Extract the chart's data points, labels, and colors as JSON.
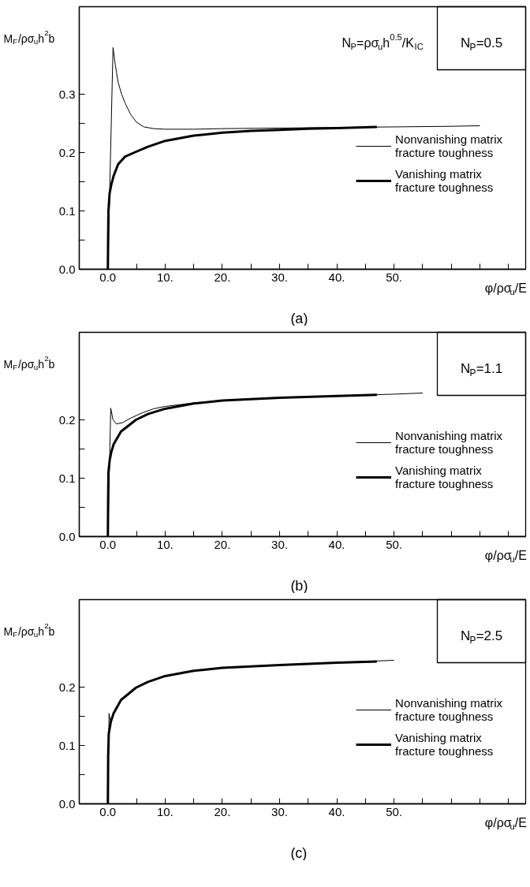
{
  "chart_data": [
    {
      "type": "line",
      "title": "(a)",
      "xlabel": "φ/ρσ$_{u}$/E",
      "ylabel": "M$_{F}$/ρσ$_{u}$h$^{2}$b",
      "legend": "right",
      "grid": false,
      "annotations": [
        "N$_{P}$=0.5",
        "N$_{P}$=ρσ$_{u}$h$^{0.5}$/K$_{IC}$"
      ],
      "xlim": [
        -5,
        73
      ],
      "ylim": [
        0,
        0.45
      ],
      "xticks": [
        {
          "value": 0,
          "label": "0.0"
        },
        {
          "value": 5,
          "label": null
        },
        {
          "value": 10,
          "label": "10."
        },
        {
          "value": 15,
          "label": null
        },
        {
          "value": 20,
          "label": "20."
        },
        {
          "value": 25,
          "label": null
        },
        {
          "value": 30,
          "label": "30."
        },
        {
          "value": 35,
          "label": null
        },
        {
          "value": 40,
          "label": "40."
        },
        {
          "value": 45,
          "label": null
        },
        {
          "value": 50,
          "label": "50."
        },
        {
          "value": 55,
          "label": null
        },
        {
          "value": 60,
          "label": null
        },
        {
          "value": 65,
          "label": null
        },
        {
          "value": 70,
          "label": null
        }
      ],
      "yticks": [
        {
          "value": 0,
          "label": "0.0"
        },
        {
          "value": 0.05,
          "label": null
        },
        0.1,
        {
          "value": 0.15,
          "label": null
        },
        0.2,
        {
          "value": 0.25,
          "label": null
        },
        0.3
      ],
      "series": [
        {
          "name": "Nonvanishing matrix fracture toughness",
          "color": "#000000",
          "x": [
            0,
            0.9,
            1.3,
            1.8,
            2.4,
            3,
            4,
            5,
            6.3,
            8,
            10,
            15,
            20,
            30,
            40,
            50,
            60,
            65
          ],
          "values": [
            0,
            0.38,
            0.35,
            0.32,
            0.3,
            0.285,
            0.265,
            0.252,
            0.244,
            0.241,
            0.24,
            0.24,
            0.241,
            0.242,
            0.243,
            0.244,
            0.245,
            0.246
          ]
        },
        {
          "name": "Vanishing matrix fracture toughness",
          "color": "#000000",
          "x": [
            0,
            0.05,
            0.1,
            0.3,
            0.6,
            1,
            1.8,
            3,
            4.6,
            7,
            10,
            15,
            20,
            25,
            30,
            35,
            40,
            47
          ],
          "values": [
            0,
            0.06,
            0.1,
            0.13,
            0.145,
            0.16,
            0.18,
            0.193,
            0.2,
            0.21,
            0.22,
            0.229,
            0.234,
            0.237,
            0.239,
            0.241,
            0.242,
            0.244
          ]
        }
      ]
    },
    {
      "type": "line",
      "title": "(b)",
      "xlabel": "φ/ρσ$_{u}$/E",
      "ylabel": "M$_{F}$/ρσ$_{u}$h$^{2}$b",
      "legend": "right",
      "grid": false,
      "annotations": [
        "N$_{P}$=1.1"
      ],
      "xlim": [
        -5,
        73
      ],
      "ylim": [
        0,
        0.35
      ],
      "xticks": [
        {
          "value": 0,
          "label": "0.0"
        },
        {
          "value": 5,
          "label": null
        },
        {
          "value": 10,
          "label": "10."
        },
        {
          "value": 15,
          "label": null
        },
        {
          "value": 20,
          "label": "20."
        },
        {
          "value": 25,
          "label": null
        },
        {
          "value": 30,
          "label": "30."
        },
        {
          "value": 35,
          "label": null
        },
        {
          "value": 40,
          "label": "40."
        },
        {
          "value": 45,
          "label": null
        },
        {
          "value": 50,
          "label": "50."
        },
        {
          "value": 55,
          "label": null
        },
        {
          "value": 60,
          "label": null
        },
        {
          "value": 65,
          "label": null
        },
        {
          "value": 70,
          "label": null
        }
      ],
      "yticks": [
        {
          "value": 0,
          "label": "0.0"
        },
        {
          "value": 0.05,
          "label": null
        },
        0.1,
        {
          "value": 0.15,
          "label": null
        },
        0.2
      ],
      "series": [
        {
          "name": "Nonvanishing matrix fracture toughness",
          "color": "#000000",
          "x": [
            0,
            0.5,
            0.9,
            1.5,
            2.5,
            4,
            6,
            8,
            10,
            15,
            20,
            30,
            40,
            50,
            55
          ],
          "values": [
            0,
            0.22,
            0.2,
            0.193,
            0.195,
            0.203,
            0.212,
            0.219,
            0.223,
            0.229,
            0.233,
            0.238,
            0.241,
            0.244,
            0.246
          ]
        },
        {
          "name": "Vanishing matrix fracture toughness",
          "color": "#000000",
          "x": [
            0,
            0.05,
            0.1,
            0.3,
            0.6,
            1,
            2.3,
            4.9,
            7,
            10,
            15,
            20,
            30,
            40,
            47
          ],
          "values": [
            0,
            0.07,
            0.11,
            0.13,
            0.145,
            0.158,
            0.18,
            0.2,
            0.21,
            0.219,
            0.228,
            0.233,
            0.238,
            0.241,
            0.243
          ]
        }
      ]
    },
    {
      "type": "line",
      "title": "(c)",
      "xlabel": "φ/ρσ$_{u}$/E",
      "ylabel": "M$_{F}$/ρσ$_{u}$h$^{2}$b",
      "legend": "right",
      "grid": false,
      "annotations": [
        "N$_{P}$=2.5"
      ],
      "xlim": [
        -5,
        73
      ],
      "ylim": [
        0,
        0.35
      ],
      "xticks": [
        {
          "value": 0,
          "label": "0.0"
        },
        {
          "value": 5,
          "label": null
        },
        {
          "value": 10,
          "label": "10."
        },
        {
          "value": 15,
          "label": null
        },
        {
          "value": 20,
          "label": "20."
        },
        {
          "value": 25,
          "label": null
        },
        {
          "value": 30,
          "label": "30."
        },
        {
          "value": 35,
          "label": null
        },
        {
          "value": 40,
          "label": "40."
        },
        {
          "value": 45,
          "label": null
        },
        {
          "value": 50,
          "label": "50."
        },
        {
          "value": 55,
          "label": null
        },
        {
          "value": 60,
          "label": null
        },
        {
          "value": 65,
          "label": null
        },
        {
          "value": 70,
          "label": null
        }
      ],
      "yticks": [
        {
          "value": 0,
          "label": "0.0"
        },
        {
          "value": 0.05,
          "label": null
        },
        0.1,
        {
          "value": 0.15,
          "label": null
        },
        0.2
      ],
      "series": [
        {
          "name": "Nonvanishing matrix fracture toughness",
          "color": "#000000",
          "x": [
            0,
            0.2,
            0.5,
            1,
            2.3,
            4.9,
            7,
            10,
            15,
            20,
            30,
            40,
            50
          ],
          "values": [
            0,
            0.155,
            0.14,
            0.155,
            0.178,
            0.199,
            0.209,
            0.219,
            0.228,
            0.233,
            0.238,
            0.242,
            0.246
          ]
        },
        {
          "name": "Vanishing matrix fracture toughness",
          "color": "#000000",
          "x": [
            0,
            0.05,
            0.15,
            0.5,
            1,
            2.3,
            4.9,
            7,
            10,
            15,
            20,
            30,
            40,
            47
          ],
          "values": [
            0,
            0.08,
            0.12,
            0.14,
            0.155,
            0.178,
            0.199,
            0.209,
            0.219,
            0.228,
            0.233,
            0.238,
            0.242,
            0.244
          ]
        }
      ]
    }
  ]
}
